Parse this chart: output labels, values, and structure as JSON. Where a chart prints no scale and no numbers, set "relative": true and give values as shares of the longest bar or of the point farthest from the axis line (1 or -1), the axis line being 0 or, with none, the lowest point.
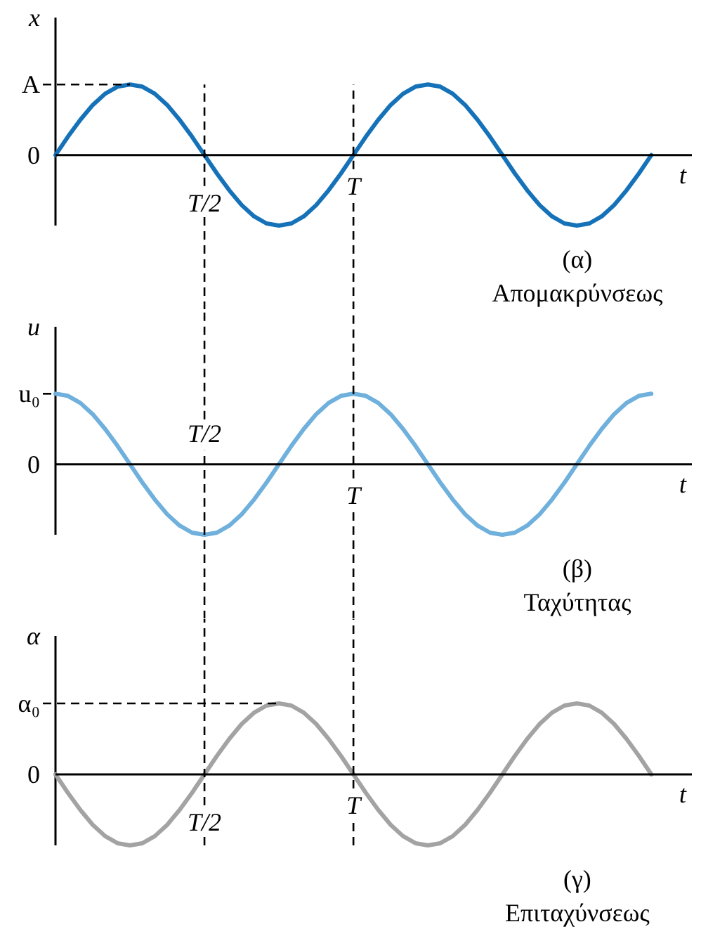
{
  "chart_data": [
    {
      "type": "line",
      "relative": true,
      "grid": "x",
      "ylabel": "x",
      "xlabel": "t",
      "categories": [
        null,
        null,
        null,
        null,
        null,
        null,
        null,
        null,
        null,
        null,
        null,
        null,
        "T/2",
        null,
        null,
        null,
        null,
        null,
        null,
        null,
        null,
        null,
        null,
        null,
        "T",
        null,
        null,
        null,
        null,
        null,
        null,
        null,
        null,
        null,
        null,
        null,
        null,
        null,
        null,
        null,
        null,
        null,
        null,
        null,
        null,
        null,
        null,
        null,
        null
      ],
      "series": [
        {
          "color": "#1672b8",
          "values": [
            0,
            0.26,
            0.5,
            0.71,
            0.87,
            0.97,
            1,
            0.97,
            0.87,
            0.71,
            0.5,
            0.26,
            0,
            -0.26,
            -0.5,
            -0.71,
            -0.87,
            -0.97,
            -1,
            -0.97,
            -0.87,
            -0.71,
            -0.5,
            -0.26,
            0,
            0.26,
            0.5,
            0.71,
            0.87,
            0.97,
            1,
            0.97,
            0.87,
            0.71,
            0.5,
            0.26,
            0,
            -0.26,
            -0.5,
            -0.71,
            -0.87,
            -0.97,
            -1,
            -0.97,
            -0.87,
            -0.71,
            -0.5,
            -0.26,
            0
          ]
        }
      ],
      "ref_lines": [
        {
          "axis": "y",
          "value": 0,
          "label": "0",
          "color": "#000000"
        },
        {
          "axis": "y",
          "value": 1,
          "label": "A",
          "color": "#000000",
          "line_style": "dashed"
        }
      ],
      "annotations": [
        "(α)",
        "Απομακρύνσεως"
      ]
    },
    {
      "type": "line",
      "relative": true,
      "grid": "x",
      "ylabel": "u",
      "xlabel": "t",
      "categories": [
        null,
        null,
        null,
        null,
        null,
        null,
        null,
        null,
        null,
        null,
        null,
        null,
        "T/2",
        null,
        null,
        null,
        null,
        null,
        null,
        null,
        null,
        null,
        null,
        null,
        "T",
        null,
        null,
        null,
        null,
        null,
        null,
        null,
        null,
        null,
        null,
        null,
        null,
        null,
        null,
        null,
        null,
        null,
        null,
        null,
        null,
        null,
        null,
        null,
        null
      ],
      "series": [
        {
          "color": "#6fb0dc",
          "values": [
            1,
            0.97,
            0.87,
            0.71,
            0.5,
            0.26,
            0,
            -0.26,
            -0.5,
            -0.71,
            -0.87,
            -0.97,
            -1,
            -0.97,
            -0.87,
            -0.71,
            -0.5,
            -0.26,
            0,
            0.26,
            0.5,
            0.71,
            0.87,
            0.97,
            1,
            0.97,
            0.87,
            0.71,
            0.5,
            0.26,
            0,
            -0.26,
            -0.5,
            -0.71,
            -0.87,
            -0.97,
            -1,
            -0.97,
            -0.87,
            -0.71,
            -0.5,
            -0.26,
            0,
            0.26,
            0.5,
            0.71,
            0.87,
            0.97,
            1
          ]
        }
      ],
      "ref_lines": [
        {
          "axis": "y",
          "value": 0,
          "label": "0",
          "color": "#000000"
        },
        {
          "axis": "y",
          "value": 1,
          "label": "u₀",
          "color": "#000000",
          "line_style": "dashed"
        }
      ],
      "annotations": [
        "(β)",
        "Ταχύτητας"
      ]
    },
    {
      "type": "line",
      "relative": true,
      "grid": "x",
      "ylabel": "α",
      "xlabel": "t",
      "categories": [
        null,
        null,
        null,
        null,
        null,
        null,
        null,
        null,
        null,
        null,
        null,
        null,
        "T/2",
        null,
        null,
        null,
        null,
        null,
        null,
        null,
        null,
        null,
        null,
        null,
        "T",
        null,
        null,
        null,
        null,
        null,
        null,
        null,
        null,
        null,
        null,
        null,
        null,
        null,
        null,
        null,
        null,
        null,
        null,
        null,
        null,
        null,
        null,
        null,
        null
      ],
      "series": [
        {
          "color": "#a3a3a3",
          "values": [
            0,
            -0.26,
            -0.5,
            -0.71,
            -0.87,
            -0.97,
            -1,
            -0.97,
            -0.87,
            -0.71,
            -0.5,
            -0.26,
            0,
            0.26,
            0.5,
            0.71,
            0.87,
            0.97,
            1,
            0.97,
            0.87,
            0.71,
            0.5,
            0.26,
            0,
            -0.26,
            -0.5,
            -0.71,
            -0.87,
            -0.97,
            -1,
            -0.97,
            -0.87,
            -0.71,
            -0.5,
            -0.26,
            0,
            0.26,
            0.5,
            0.71,
            0.87,
            0.97,
            1,
            0.97,
            0.87,
            0.71,
            0.5,
            0.26,
            0
          ]
        }
      ],
      "ref_lines": [
        {
          "axis": "y",
          "value": 0,
          "label": "0",
          "color": "#000000"
        },
        {
          "axis": "y",
          "value": 1,
          "label": "α₀",
          "color": "#000000",
          "line_style": "dashed"
        }
      ],
      "annotations": [
        "(γ)",
        "Επιταχύνσεως"
      ]
    }
  ]
}
